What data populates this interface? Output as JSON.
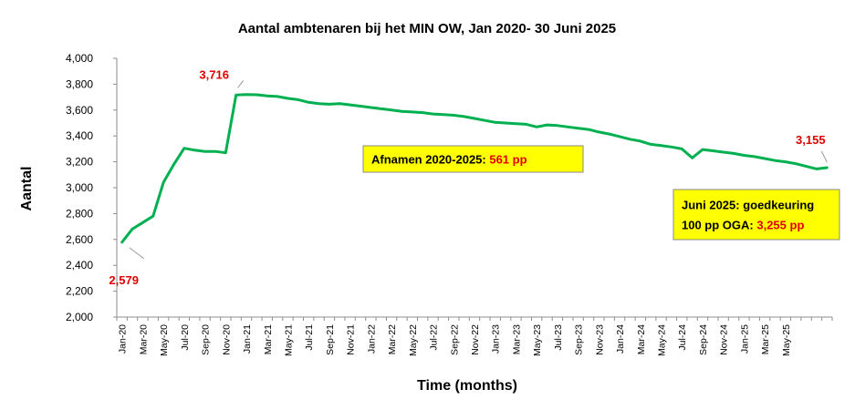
{
  "chart_data": {
    "type": "line",
    "title": "Aantal ambtenaren bij het MIN OW, Jan 2020- 30 Juni 2025",
    "xlabel": "Time (months)",
    "ylabel": "Aantal",
    "ylim": [
      2000,
      4000
    ],
    "y_ticks": [
      "2,000",
      "2,200",
      "2,400",
      "2,600",
      "2,800",
      "3,000",
      "3,200",
      "3,400",
      "3,600",
      "3,800",
      "4,000"
    ],
    "x_tick_labels": [
      "Jan-20",
      "Mar-20",
      "May-20",
      "Jul-20",
      "Sep-20",
      "Nov-20",
      "Jan-21",
      "Mar-21",
      "May-21",
      "Jul-21",
      "Sep-21",
      "Nov-21",
      "Jan-22",
      "Mar-22",
      "May-22",
      "Jul-22",
      "Sep-22",
      "Nov-22",
      "Jan-23",
      "Mar-23",
      "May-23",
      "Jul-23",
      "Sep-23",
      "Nov-23",
      "Jan-24",
      "Mar-24",
      "May-24",
      "Jul-24",
      "Sep-24",
      "Nov-24",
      "Jan-25",
      "Mar-25",
      "May-25"
    ],
    "grid": false,
    "line_color": "#00b050",
    "series": [
      {
        "values": [
          2579,
          2680,
          2730,
          2780,
          3040,
          3180,
          3305,
          3290,
          3280,
          3280,
          3270,
          3716,
          3720,
          3718,
          3710,
          3705,
          3690,
          3680,
          3660,
          3650,
          3645,
          3650,
          3640,
          3630,
          3620,
          3610,
          3600,
          3590,
          3585,
          3580,
          3570,
          3565,
          3560,
          3550,
          3535,
          3520,
          3505,
          3500,
          3495,
          3490,
          3470,
          3485,
          3480,
          3470,
          3460,
          3450,
          3430,
          3415,
          3395,
          3375,
          3360,
          3335,
          3325,
          3315,
          3300,
          3230,
          3295,
          3285,
          3275,
          3265,
          3250,
          3240,
          3225,
          3210,
          3200,
          3185,
          3165,
          3145,
          3155
        ]
      }
    ],
    "data_labels": [
      {
        "index": 0,
        "text": "2,579"
      },
      {
        "index": 11,
        "text": "3,716"
      },
      {
        "index": 68,
        "text": "3,155"
      }
    ],
    "annotations": [
      {
        "lines": [
          [
            {
              "text": "Afnamen 2020-2025: ",
              "red": false
            },
            {
              "text": "561 pp",
              "red": true
            }
          ]
        ]
      },
      {
        "lines": [
          [
            {
              "text": "Juni 2025: goedkeuring",
              "red": false
            }
          ],
          [
            {
              "text": "100 pp OGA: ",
              "red": false
            },
            {
              "text": "3,255 pp",
              "red": true
            }
          ]
        ]
      }
    ]
  }
}
